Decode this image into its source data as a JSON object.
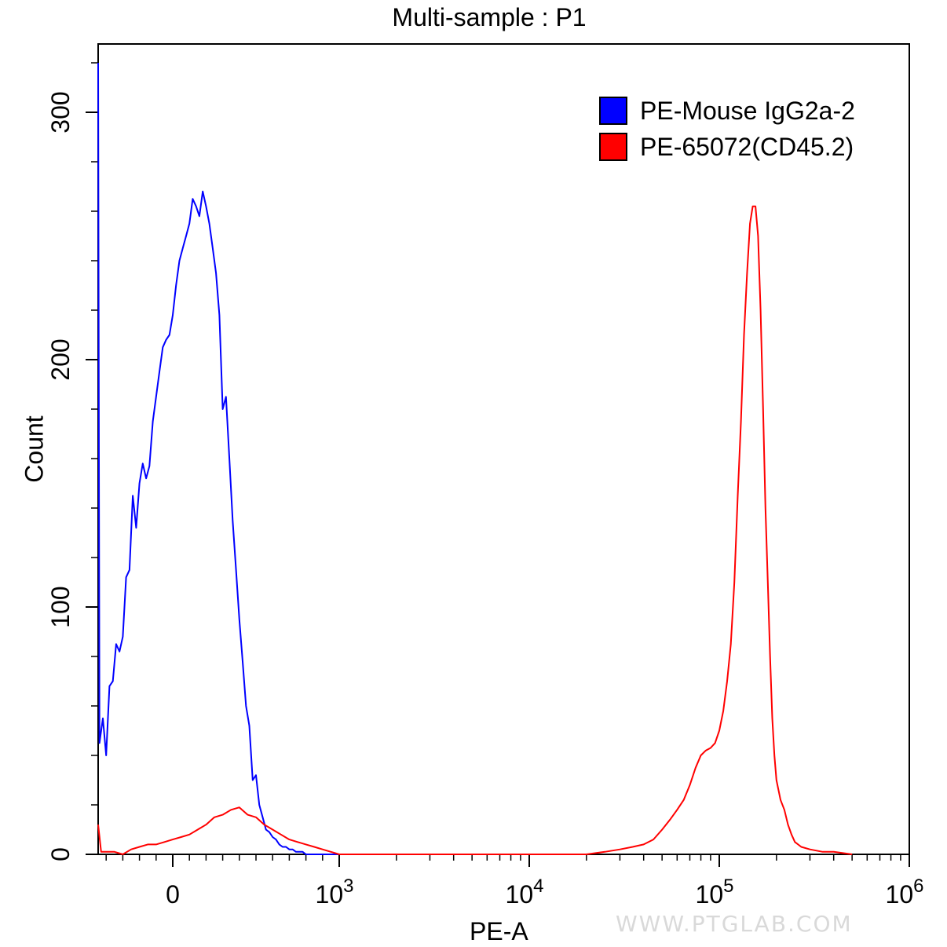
{
  "chart_data": {
    "type": "line",
    "title": "Multi-sample : P1",
    "xlabel": "PE-A",
    "ylabel": "Count",
    "x_scale": "biexponential",
    "xlim": [
      -450,
      1000000
    ],
    "ylim": [
      0,
      320
    ],
    "grid": false,
    "legend_position": "top-right",
    "x_ticks": [
      {
        "value": 0,
        "label": "0"
      },
      {
        "value": 1000,
        "label": "10",
        "sup": "3"
      },
      {
        "value": 10000,
        "label": "10",
        "sup": "4"
      },
      {
        "value": 100000,
        "label": "10",
        "sup": "5"
      },
      {
        "value": 1000000,
        "label": "10",
        "sup": "6"
      }
    ],
    "y_ticks": [
      {
        "value": 0,
        "label": "0"
      },
      {
        "value": 100,
        "label": "100"
      },
      {
        "value": 200,
        "label": "200"
      },
      {
        "value": 300,
        "label": "300"
      }
    ],
    "series": [
      {
        "name": "PE-Mouse IgG2a-2",
        "color": "#0000ff",
        "x": [
          -450,
          -440,
          -420,
          -400,
          -380,
          -360,
          -340,
          -320,
          -300,
          -280,
          -260,
          -240,
          -220,
          -200,
          -180,
          -160,
          -140,
          -120,
          -100,
          -80,
          -60,
          -40,
          -20,
          0,
          20,
          40,
          60,
          80,
          100,
          120,
          140,
          160,
          180,
          200,
          220,
          240,
          260,
          280,
          300,
          320,
          340,
          360,
          380,
          400,
          420,
          440,
          460,
          480,
          500,
          520,
          540,
          560,
          580,
          600,
          620,
          640,
          660,
          680,
          700,
          720,
          740,
          760,
          780,
          800,
          820,
          840,
          860,
          880,
          900,
          920,
          940,
          960,
          980,
          1000,
          1020,
          1050
        ],
        "y": [
          320,
          45,
          55,
          40,
          68,
          70,
          85,
          82,
          88,
          112,
          115,
          145,
          132,
          150,
          158,
          152,
          157,
          175,
          185,
          195,
          205,
          208,
          210,
          218,
          230,
          240,
          245,
          250,
          255,
          265,
          262,
          258,
          268,
          262,
          255,
          245,
          235,
          218,
          180,
          185,
          160,
          135,
          115,
          95,
          78,
          60,
          52,
          30,
          32,
          20,
          15,
          10,
          9,
          7,
          6,
          4,
          3,
          3,
          2,
          2,
          1,
          1,
          1,
          0,
          0,
          0,
          0,
          0,
          0,
          0,
          0,
          0,
          0,
          0,
          0,
          0
        ]
      },
      {
        "name": "PE-65072(CD45.2)",
        "color": "#ff0000",
        "x": [
          -450,
          -430,
          -400,
          -350,
          -300,
          -250,
          -200,
          -150,
          -100,
          -50,
          0,
          50,
          100,
          150,
          200,
          250,
          300,
          350,
          400,
          450,
          500,
          550,
          600,
          650,
          700,
          750,
          800,
          850,
          900,
          950,
          1000,
          1100,
          20000,
          25000,
          30000,
          35000,
          40000,
          45000,
          50000,
          55000,
          60000,
          65000,
          70000,
          75000,
          80000,
          85000,
          90000,
          95000,
          100000,
          105000,
          110000,
          115000,
          120000,
          125000,
          130000,
          135000,
          140000,
          145000,
          150000,
          155000,
          160000,
          165000,
          170000,
          175000,
          180000,
          185000,
          190000,
          195000,
          200000,
          210000,
          220000,
          230000,
          240000,
          250000,
          270000,
          300000,
          350000,
          400000,
          500000
        ],
        "y": [
          12,
          1,
          1,
          1,
          0,
          2,
          3,
          4,
          4,
          5,
          6,
          7,
          8,
          10,
          12,
          15,
          16,
          18,
          19,
          16,
          15,
          12,
          10,
          8,
          6,
          5,
          4,
          3,
          2,
          1,
          0,
          0,
          0,
          1,
          2,
          3,
          4,
          6,
          10,
          14,
          18,
          22,
          28,
          35,
          40,
          42,
          43,
          45,
          50,
          58,
          70,
          85,
          110,
          145,
          175,
          210,
          235,
          255,
          262,
          262,
          250,
          220,
          180,
          140,
          110,
          80,
          55,
          40,
          30,
          22,
          18,
          12,
          8,
          5,
          3,
          2,
          1,
          1,
          0
        ]
      }
    ]
  },
  "watermark_text": "WWW.PTGLAB.COM"
}
